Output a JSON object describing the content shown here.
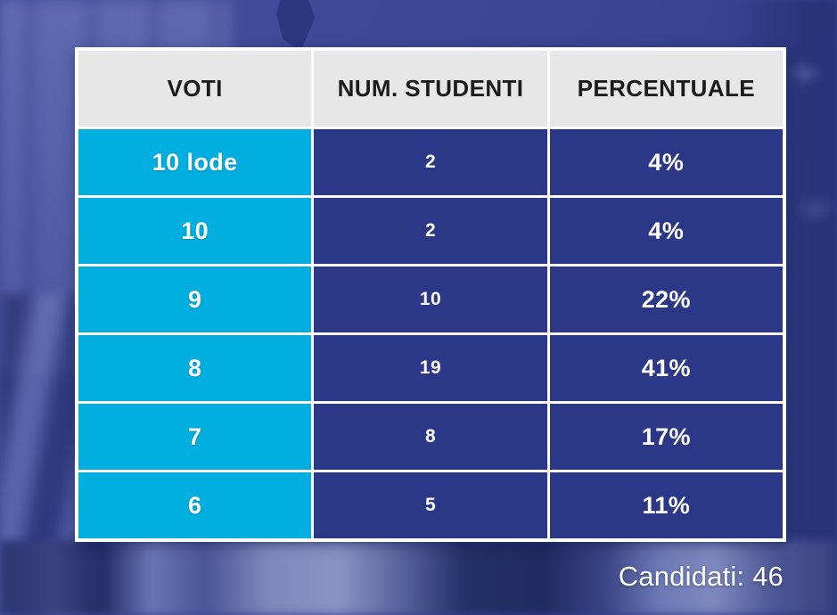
{
  "colors": {
    "cyan": "#00AEE0",
    "navy": "#2B3787",
    "headerBg": "#E7E7E7",
    "headerText": "#1C1C1C",
    "cellText": "#FFFFFF",
    "gridWhite": "#FFFFFF",
    "background": "#3C4795"
  },
  "table": {
    "headers": [
      "VOTI",
      "NUM. STUDENTI",
      "PERCENTUALE"
    ],
    "rows": [
      {
        "voto": "10 lode",
        "studenti": "2",
        "percentuale": "4%"
      },
      {
        "voto": "10",
        "studenti": "2",
        "percentuale": "4%"
      },
      {
        "voto": "9",
        "studenti": "10",
        "percentuale": "22%"
      },
      {
        "voto": "8",
        "studenti": "19",
        "percentuale": "41%"
      },
      {
        "voto": "7",
        "studenti": "8",
        "percentuale": "17%"
      },
      {
        "voto": "6",
        "studenti": "5",
        "percentuale": "11%"
      }
    ]
  },
  "footer": {
    "candidati_note": "Candidati: 46"
  },
  "chart_data": {
    "type": "table",
    "title": "",
    "columns": [
      "VOTI",
      "NUM. STUDENTI",
      "PERCENTUALE"
    ],
    "rows": [
      [
        "10 lode",
        2,
        "4%"
      ],
      [
        "10",
        2,
        "4%"
      ],
      [
        "9",
        10,
        "22%"
      ],
      [
        "8",
        19,
        "41%"
      ],
      [
        "7",
        8,
        "17%"
      ],
      [
        "6",
        5,
        "11%"
      ]
    ],
    "annotations": [
      "Candidati: 46"
    ],
    "total_candidates": 46
  }
}
